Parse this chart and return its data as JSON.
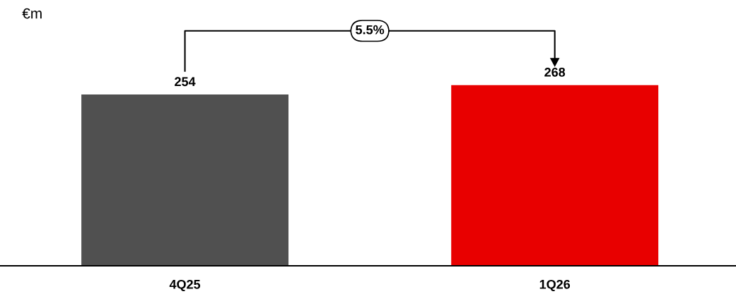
{
  "chart_data": {
    "type": "bar",
    "ylabel": "€m",
    "categories": [
      "4Q25",
      "1Q26"
    ],
    "values": [
      254,
      268
    ],
    "colors": [
      "#505050",
      "#e80000"
    ],
    "data_labels": true,
    "annotations": [
      "5.5%"
    ],
    "grid": false,
    "legend": false
  }
}
